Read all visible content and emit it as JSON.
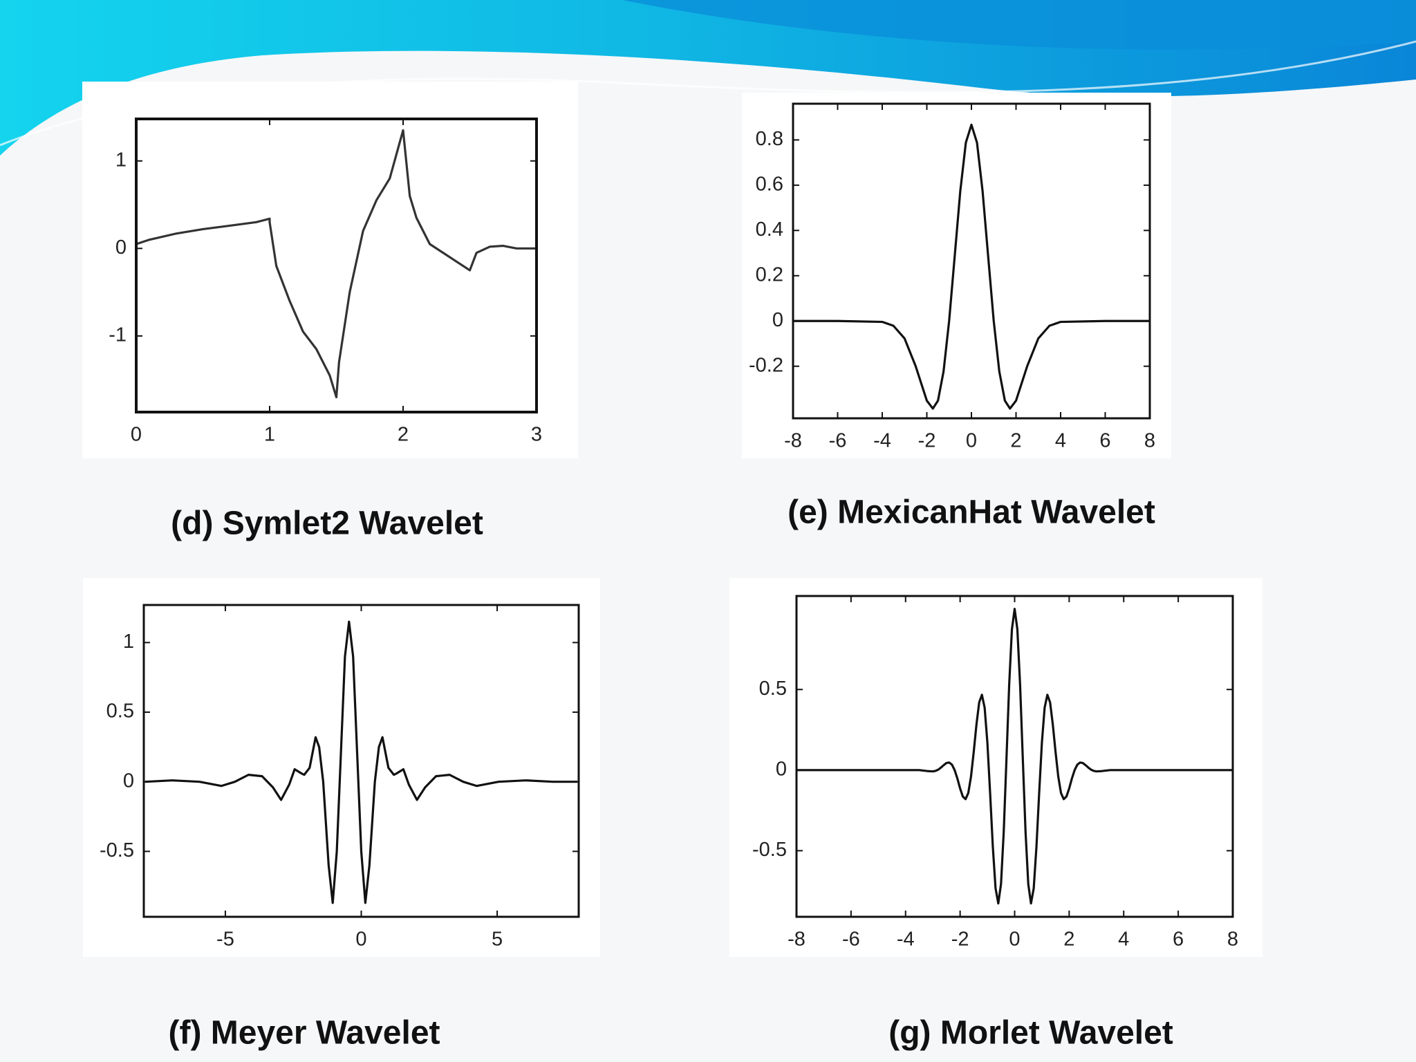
{
  "chart_data": [
    {
      "type": "line",
      "title": "(d) Symlet2 Wavelet",
      "color": "#333333",
      "x": [
        0,
        0.1,
        0.3,
        0.5,
        0.7,
        0.9,
        1.0,
        1.0,
        1.05,
        1.15,
        1.25,
        1.35,
        1.45,
        1.5,
        1.52,
        1.6,
        1.7,
        1.8,
        1.9,
        2.0,
        2.05,
        2.1,
        2.2,
        2.3,
        2.4,
        2.5,
        2.55,
        2.65,
        2.75,
        2.85,
        3.0
      ],
      "values": [
        0.05,
        0.1,
        0.17,
        0.22,
        0.26,
        0.3,
        0.34,
        0.3,
        -0.2,
        -0.6,
        -0.95,
        -1.15,
        -1.45,
        -1.7,
        -1.3,
        -0.5,
        0.2,
        0.55,
        0.8,
        1.35,
        0.6,
        0.35,
        0.05,
        -0.05,
        -0.15,
        -0.25,
        -0.05,
        0.02,
        0.03,
        0.0,
        0.0
      ],
      "xlim": [
        0,
        3
      ],
      "ylim": [
        -1.87,
        1.48
      ],
      "xticks": [
        0,
        1,
        2,
        3
      ],
      "yticks": [
        -1,
        0,
        1
      ]
    },
    {
      "type": "line",
      "title": "(e) MexicanHat Wavelet",
      "color": "#111111",
      "x": [
        -8,
        -6,
        -4,
        -3.5,
        -3,
        -2.5,
        -2,
        -1.73,
        -1.5,
        -1.25,
        -1,
        -0.75,
        -0.5,
        -0.25,
        0,
        0.25,
        0.5,
        0.75,
        1,
        1.25,
        1.5,
        1.73,
        2,
        2.5,
        3,
        3.5,
        4,
        6,
        8
      ],
      "values": [
        0,
        0,
        -0.004,
        -0.021,
        -0.077,
        -0.2,
        -0.352,
        -0.387,
        -0.352,
        -0.223,
        0,
        0.286,
        0.574,
        0.788,
        0.867,
        0.788,
        0.574,
        0.286,
        0,
        -0.223,
        -0.352,
        -0.387,
        -0.352,
        -0.2,
        -0.077,
        -0.021,
        -0.004,
        0,
        0
      ],
      "xlim": [
        -8,
        8
      ],
      "ylim": [
        -0.43,
        0.96
      ],
      "xticks": [
        -8,
        -6,
        -4,
        -2,
        0,
        2,
        4,
        6,
        8
      ],
      "yticks": [
        -0.2,
        0,
        0.2,
        0.4,
        0.6,
        0.8
      ]
    },
    {
      "type": "line",
      "title": "(f) Meyer Wavelet",
      "color": "#111111",
      "x": [
        -7.95,
        -6.95,
        -5.95,
        -5.15,
        -4.65,
        -4.15,
        -3.65,
        -3.25,
        -2.95,
        -2.65,
        -2.45,
        -2.2,
        -2.1,
        -1.9,
        -1.68,
        -1.55,
        -1.4,
        -1.2,
        -1.05,
        -0.9,
        -0.75,
        -0.6,
        -0.45,
        -0.3,
        -0.15,
        0,
        0.15,
        0.3,
        0.5,
        0.65,
        0.78,
        1.0,
        1.2,
        1.3,
        1.55,
        1.75,
        2.05,
        2.35,
        2.75,
        3.25,
        3.75,
        4.25,
        5.05,
        6.05,
        7.05,
        7.95
      ],
      "values": [
        0,
        0.01,
        0,
        -0.03,
        0,
        0.05,
        0.04,
        -0.04,
        -0.13,
        -0.02,
        0.09,
        0.06,
        0.05,
        0.1,
        0.32,
        0.25,
        0,
        -0.6,
        -0.87,
        -0.5,
        0.2,
        0.9,
        1.15,
        0.9,
        0.2,
        -0.5,
        -0.87,
        -0.6,
        0,
        0.25,
        0.32,
        0.1,
        0.05,
        0.06,
        0.09,
        -0.02,
        -0.13,
        -0.04,
        0.04,
        0.05,
        0,
        -0.03,
        0,
        0.01,
        0,
        0
      ],
      "xlim": [
        -8,
        8
      ],
      "ylim": [
        -0.97,
        1.27
      ],
      "xticks": [
        -5,
        0,
        5
      ],
      "yticks": [
        -0.5,
        0,
        0.5,
        1
      ]
    },
    {
      "type": "line",
      "title": "(g) Morlet Wavelet",
      "color": "#111111",
      "x": [
        -8,
        -3.5,
        -3.2,
        -3.0,
        -2.9,
        -2.8,
        -2.7,
        -2.6,
        -2.5,
        -2.4,
        -2.3,
        -2.2,
        -2.1,
        -2.0,
        -1.9,
        -1.8,
        -1.7,
        -1.6,
        -1.5,
        -1.4,
        -1.3,
        -1.2,
        -1.1,
        -1.0,
        -0.9,
        -0.8,
        -0.7,
        -0.6,
        -0.5,
        -0.4,
        -0.3,
        -0.2,
        -0.1,
        0,
        0.1,
        0.2,
        0.3,
        0.4,
        0.5,
        0.6,
        0.7,
        0.8,
        0.9,
        1.0,
        1.1,
        1.2,
        1.3,
        1.4,
        1.5,
        1.6,
        1.7,
        1.8,
        1.9,
        2.0,
        2.1,
        2.2,
        2.3,
        2.4,
        2.5,
        2.6,
        2.7,
        2.8,
        2.9,
        3.0,
        3.2,
        3.5,
        8
      ],
      "values": [
        0,
        0,
        -0.006,
        -0.008,
        -0.005,
        0.003,
        0.016,
        0.031,
        0.044,
        0.047,
        0.034,
        0.0,
        -0.052,
        -0.114,
        -0.164,
        -0.18,
        -0.142,
        -0.04,
        0.113,
        0.283,
        0.42,
        0.467,
        0.387,
        0.172,
        -0.141,
        -0.475,
        -0.733,
        -0.827,
        -0.707,
        -0.384,
        0.068,
        0.53,
        0.873,
        1,
        0.873,
        0.53,
        0.068,
        -0.384,
        -0.707,
        -0.827,
        -0.733,
        -0.475,
        -0.141,
        0.172,
        0.387,
        0.467,
        0.42,
        0.283,
        0.113,
        -0.04,
        -0.142,
        -0.18,
        -0.164,
        -0.114,
        -0.052,
        0.0,
        0.034,
        0.047,
        0.044,
        0.031,
        0.016,
        0.003,
        -0.005,
        -0.008,
        -0.006,
        0,
        0
      ],
      "xlim": [
        -8,
        8
      ],
      "ylim": [
        -0.91,
        1.08
      ],
      "xticks": [
        -8,
        -6,
        -4,
        -2,
        0,
        2,
        4,
        6,
        8
      ],
      "yticks": [
        -0.5,
        0,
        0.5
      ]
    }
  ]
}
